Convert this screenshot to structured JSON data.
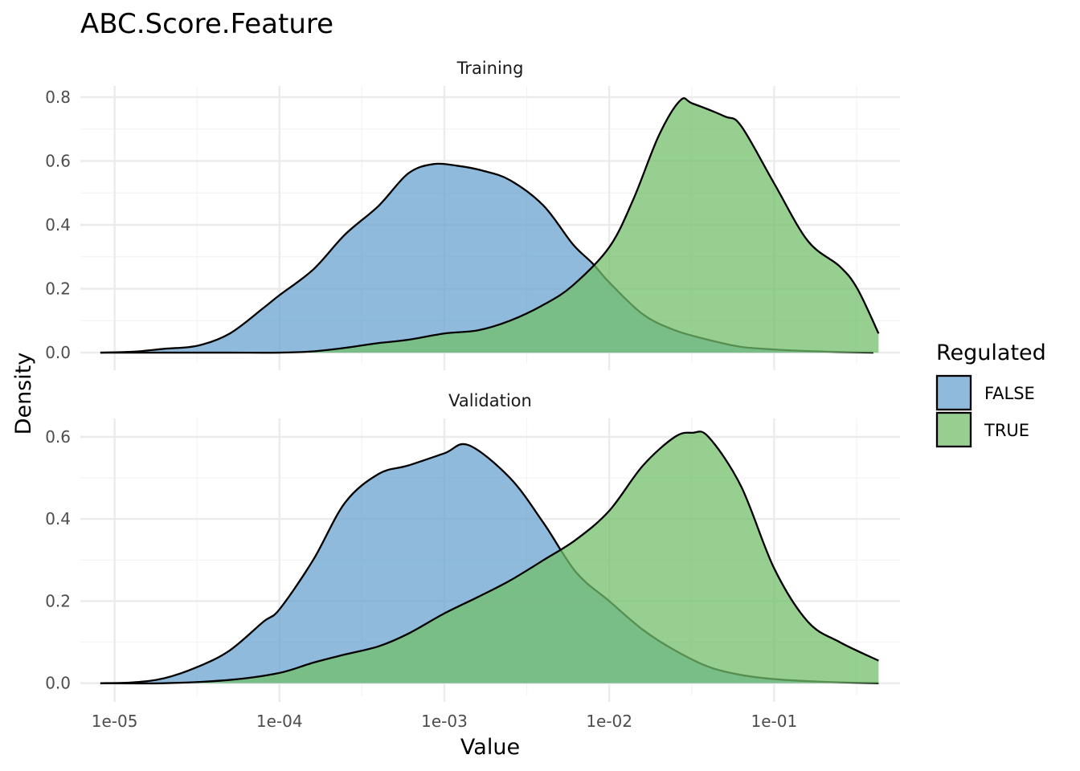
{
  "chart_data": {
    "type": "area",
    "title": "ABC.Score.Feature",
    "xlabel": "Value",
    "ylabel": "Density",
    "x_scale": "log10",
    "x_ticks": [
      1e-05,
      0.0001,
      0.001,
      0.01,
      0.1
    ],
    "x_tick_labels": [
      "1e-05",
      "1e-04",
      "1e-03",
      "1e-02",
      "1e-01"
    ],
    "xlim": [
      6.2e-06,
      0.58
    ],
    "legend": {
      "title": "Regulated",
      "position": "right",
      "entries": [
        {
          "label": "FALSE",
          "color": "#6aa3cf"
        },
        {
          "label": "TRUE",
          "color": "#73bf6b"
        }
      ]
    },
    "panels": [
      {
        "name": "Training",
        "ylim": [
          -0.035,
          0.835
        ],
        "y_ticks": [
          0.0,
          0.2,
          0.4,
          0.6,
          0.8
        ],
        "y_tick_labels": [
          "0.0",
          "0.2",
          "0.4",
          "0.6",
          "0.8"
        ],
        "series": [
          {
            "name": "FALSE",
            "x": [
              8.2e-06,
              1.3e-05,
              2e-05,
              3.2e-05,
              5e-05,
              8e-05,
              0.0001,
              0.00016,
              0.00025,
              0.0004,
              0.0006,
              0.00085,
              0.0012,
              0.0017,
              0.0025,
              0.004,
              0.006,
              0.0079,
              0.01,
              0.016,
              0.025,
              0.04,
              0.063,
              0.1,
              0.16,
              0.25,
              0.4
            ],
            "y": [
              0.0,
              0.003,
              0.012,
              0.022,
              0.06,
              0.14,
              0.18,
              0.26,
              0.37,
              0.46,
              0.56,
              0.59,
              0.585,
              0.57,
              0.54,
              0.46,
              0.34,
              0.28,
              0.22,
              0.12,
              0.07,
              0.04,
              0.018,
              0.01,
              0.005,
              0.002,
              0.0
            ]
          },
          {
            "name": "TRUE",
            "x": [
              8.2e-06,
              2e-05,
              5e-05,
              0.0001,
              0.00016,
              0.00025,
              0.0004,
              0.0006,
              0.001,
              0.0016,
              0.0025,
              0.004,
              0.006,
              0.01,
              0.014,
              0.02,
              0.027,
              0.032,
              0.05,
              0.063,
              0.1,
              0.16,
              0.25,
              0.32,
              0.43
            ],
            "y": [
              0.0,
              0.0,
              0.0,
              0.0,
              0.004,
              0.015,
              0.03,
              0.04,
              0.06,
              0.07,
              0.1,
              0.15,
              0.21,
              0.33,
              0.48,
              0.68,
              0.79,
              0.78,
              0.74,
              0.71,
              0.53,
              0.35,
              0.27,
              0.2,
              0.06
            ]
          }
        ]
      },
      {
        "name": "Validation",
        "ylim": [
          -0.03,
          0.645
        ],
        "y_ticks": [
          0.0,
          0.2,
          0.4,
          0.6
        ],
        "y_tick_labels": [
          "0.0",
          "0.2",
          "0.4",
          "0.6"
        ],
        "series": [
          {
            "name": "FALSE",
            "x": [
              8.2e-06,
              1.3e-05,
              2e-05,
              3.2e-05,
              5e-05,
              8e-05,
              0.0001,
              0.00016,
              0.00025,
              0.0004,
              0.0006,
              0.001,
              0.0014,
              0.0025,
              0.004,
              0.0063,
              0.01,
              0.016,
              0.025,
              0.04,
              0.063,
              0.1,
              0.16,
              0.25,
              0.43
            ],
            "y": [
              0.0,
              0.002,
              0.012,
              0.04,
              0.08,
              0.15,
              0.18,
              0.3,
              0.44,
              0.51,
              0.53,
              0.56,
              0.58,
              0.5,
              0.39,
              0.27,
              0.2,
              0.13,
              0.08,
              0.04,
              0.02,
              0.01,
              0.005,
              0.002,
              0.0
            ]
          },
          {
            "name": "TRUE",
            "x": [
              8.2e-06,
              2e-05,
              5e-05,
              0.0001,
              0.00016,
              0.00025,
              0.0004,
              0.0006,
              0.001,
              0.0016,
              0.0025,
              0.004,
              0.0063,
              0.01,
              0.016,
              0.025,
              0.032,
              0.04,
              0.063,
              0.1,
              0.16,
              0.25,
              0.43
            ],
            "y": [
              0.0,
              0.0,
              0.008,
              0.025,
              0.05,
              0.07,
              0.09,
              0.12,
              0.17,
              0.21,
              0.25,
              0.3,
              0.35,
              0.42,
              0.53,
              0.6,
              0.61,
              0.6,
              0.48,
              0.28,
              0.15,
              0.1,
              0.055
            ]
          }
        ]
      }
    ]
  }
}
